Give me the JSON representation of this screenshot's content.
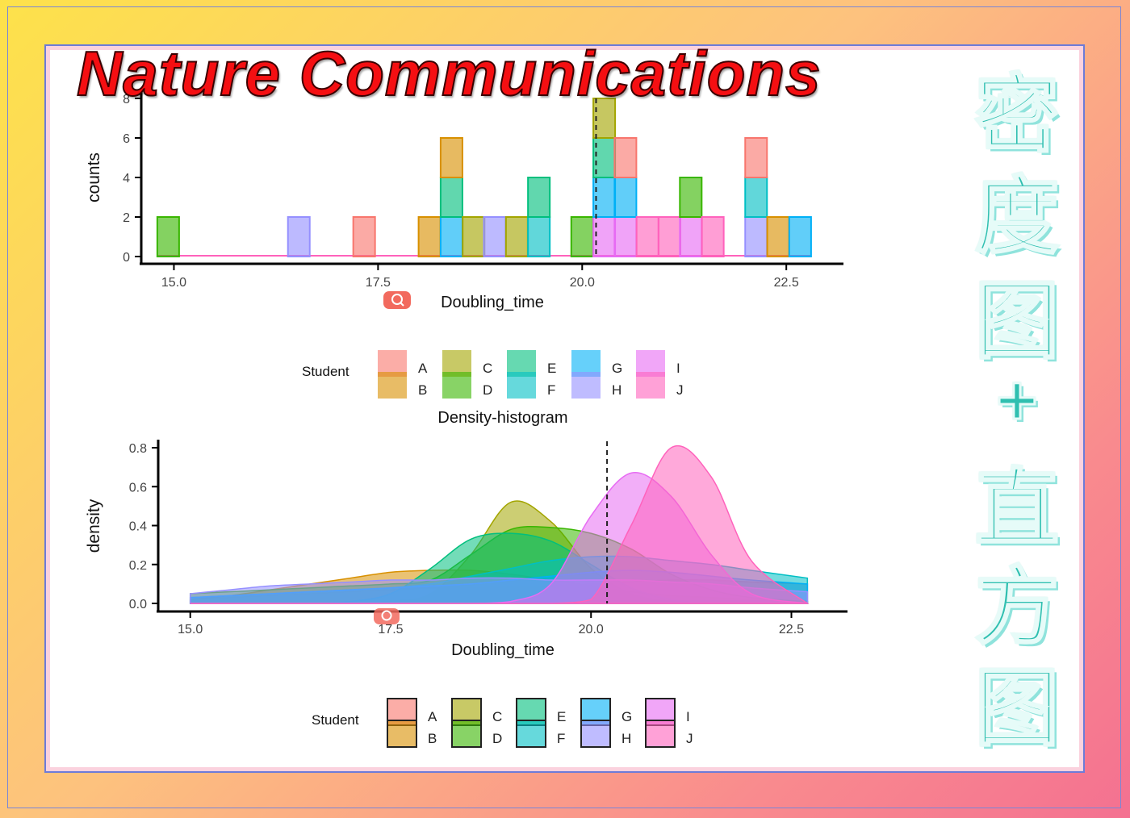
{
  "overlay": {
    "title": "Nature Communications",
    "cjk_headline": [
      "密",
      "度",
      "图",
      "+",
      "直",
      "方",
      "图"
    ]
  },
  "colors": {
    "A": "#f8766d",
    "B": "#d89000",
    "C": "#a3a500",
    "D": "#39b600",
    "E": "#00bf7d",
    "F": "#00bfc4",
    "G": "#00b0f6",
    "H": "#9590ff",
    "I": "#e76bf3",
    "J": "#ff62bc"
  },
  "chart_data": [
    {
      "type": "bar",
      "subtype": "stacked-histogram",
      "title": "",
      "xlabel": "Doubling_time",
      "ylabel": "counts",
      "xlim": [
        14.6,
        23.2
      ],
      "ylim": [
        0,
        8
      ],
      "xticks": [
        "15.0",
        "17.5",
        "20.0",
        "22.5"
      ],
      "yticks": [
        "0",
        "2",
        "4",
        "6",
        "8"
      ],
      "bin_width": 0.267,
      "vline": 20.17,
      "legend": {
        "title": "Student",
        "position": "bottom",
        "items": [
          "A",
          "B",
          "C",
          "D",
          "E",
          "F",
          "G",
          "H",
          "I",
          "J"
        ]
      },
      "bins": [
        {
          "x": 14.93,
          "stack": [
            [
              "D",
              2
            ]
          ]
        },
        {
          "x": 16.53,
          "stack": [
            [
              "H",
              2
            ]
          ]
        },
        {
          "x": 17.33,
          "stack": [
            [
              "A",
              2
            ]
          ]
        },
        {
          "x": 18.13,
          "stack": [
            [
              "B",
              2
            ]
          ]
        },
        {
          "x": 18.4,
          "stack": [
            [
              "G",
              2
            ],
            [
              "E",
              2
            ],
            [
              "B",
              2
            ]
          ]
        },
        {
          "x": 18.67,
          "stack": [
            [
              "C",
              2
            ]
          ]
        },
        {
          "x": 18.93,
          "stack": [
            [
              "H",
              2
            ]
          ]
        },
        {
          "x": 19.2,
          "stack": [
            [
              "C",
              2
            ]
          ]
        },
        {
          "x": 19.47,
          "stack": [
            [
              "F",
              2
            ],
            [
              "E",
              2
            ]
          ]
        },
        {
          "x": 20.0,
          "stack": [
            [
              "D",
              2
            ]
          ]
        },
        {
          "x": 20.27,
          "stack": [
            [
              "I",
              2
            ],
            [
              "G",
              2
            ],
            [
              "E",
              2
            ],
            [
              "C",
              2
            ]
          ]
        },
        {
          "x": 20.53,
          "stack": [
            [
              "I",
              2
            ],
            [
              "G",
              2
            ],
            [
              "A",
              2
            ]
          ]
        },
        {
          "x": 20.8,
          "stack": [
            [
              "J",
              2
            ]
          ]
        },
        {
          "x": 21.07,
          "stack": [
            [
              "J",
              2
            ]
          ]
        },
        {
          "x": 21.33,
          "stack": [
            [
              "I",
              2
            ],
            [
              "D",
              2
            ]
          ]
        },
        {
          "x": 21.6,
          "stack": [
            [
              "J",
              2
            ]
          ]
        },
        {
          "x": 22.13,
          "stack": [
            [
              "H",
              2
            ],
            [
              "F",
              2
            ],
            [
              "A",
              2
            ]
          ]
        },
        {
          "x": 22.4,
          "stack": [
            [
              "B",
              2
            ]
          ]
        },
        {
          "x": 22.67,
          "stack": [
            [
              "G",
              2
            ]
          ]
        }
      ]
    },
    {
      "type": "area",
      "subtype": "density",
      "title": "Density-histogram",
      "xlabel": "Doubling_time",
      "ylabel": "density",
      "xlim": [
        14.6,
        23.2
      ],
      "ylim": [
        0,
        0.8
      ],
      "xticks": [
        "15.0",
        "17.5",
        "20.0",
        "22.5"
      ],
      "yticks": [
        "0.0",
        "0.2",
        "0.4",
        "0.6",
        "0.8"
      ],
      "vline": 20.2,
      "legend": {
        "title": "Student",
        "position": "bottom",
        "items": [
          "A",
          "B",
          "C",
          "D",
          "E",
          "F",
          "G",
          "H",
          "I",
          "J"
        ]
      },
      "x": [
        15.0,
        15.5,
        16.0,
        16.5,
        17.0,
        17.5,
        18.0,
        18.5,
        19.0,
        19.5,
        20.0,
        20.5,
        21.0,
        21.5,
        22.0,
        22.7
      ],
      "series": [
        {
          "name": "A",
          "values": [
            0.02,
            0.03,
            0.04,
            0.05,
            0.06,
            0.07,
            0.08,
            0.08,
            0.09,
            0.09,
            0.1,
            0.11,
            0.12,
            0.12,
            0.11,
            0.1
          ]
        },
        {
          "name": "B",
          "values": [
            0.02,
            0.04,
            0.07,
            0.1,
            0.13,
            0.16,
            0.17,
            0.17,
            0.15,
            0.12,
            0.09,
            0.06,
            0.04,
            0.03,
            0.02,
            0.01
          ]
        },
        {
          "name": "C",
          "values": [
            0.0,
            0.0,
            0.0,
            0.0,
            0.0,
            0.01,
            0.05,
            0.25,
            0.52,
            0.42,
            0.18,
            0.05,
            0.01,
            0.0,
            0.0,
            0.0
          ]
        },
        {
          "name": "D",
          "values": [
            0.05,
            0.06,
            0.07,
            0.08,
            0.09,
            0.1,
            0.12,
            0.25,
            0.38,
            0.39,
            0.36,
            0.28,
            0.15,
            0.07,
            0.03,
            0.01
          ]
        },
        {
          "name": "E",
          "values": [
            0.0,
            0.0,
            0.0,
            0.0,
            0.01,
            0.05,
            0.18,
            0.33,
            0.36,
            0.32,
            0.2,
            0.08,
            0.02,
            0.0,
            0.0,
            0.0
          ]
        },
        {
          "name": "F",
          "values": [
            0.03,
            0.04,
            0.05,
            0.06,
            0.07,
            0.08,
            0.1,
            0.14,
            0.18,
            0.22,
            0.24,
            0.24,
            0.22,
            0.2,
            0.17,
            0.13
          ]
        },
        {
          "name": "G",
          "values": [
            0.03,
            0.04,
            0.05,
            0.06,
            0.07,
            0.08,
            0.09,
            0.1,
            0.12,
            0.14,
            0.16,
            0.17,
            0.16,
            0.14,
            0.12,
            0.1
          ]
        },
        {
          "name": "H",
          "values": [
            0.05,
            0.07,
            0.09,
            0.1,
            0.11,
            0.12,
            0.12,
            0.13,
            0.13,
            0.12,
            0.12,
            0.12,
            0.11,
            0.1,
            0.08,
            0.06
          ]
        },
        {
          "name": "I",
          "values": [
            0.0,
            0.0,
            0.0,
            0.0,
            0.0,
            0.0,
            0.0,
            0.0,
            0.01,
            0.1,
            0.45,
            0.67,
            0.55,
            0.25,
            0.05,
            0.0
          ]
        },
        {
          "name": "J",
          "values": [
            0.0,
            0.0,
            0.0,
            0.0,
            0.0,
            0.0,
            0.0,
            0.0,
            0.0,
            0.0,
            0.02,
            0.4,
            0.8,
            0.65,
            0.22,
            0.0
          ]
        }
      ]
    }
  ]
}
